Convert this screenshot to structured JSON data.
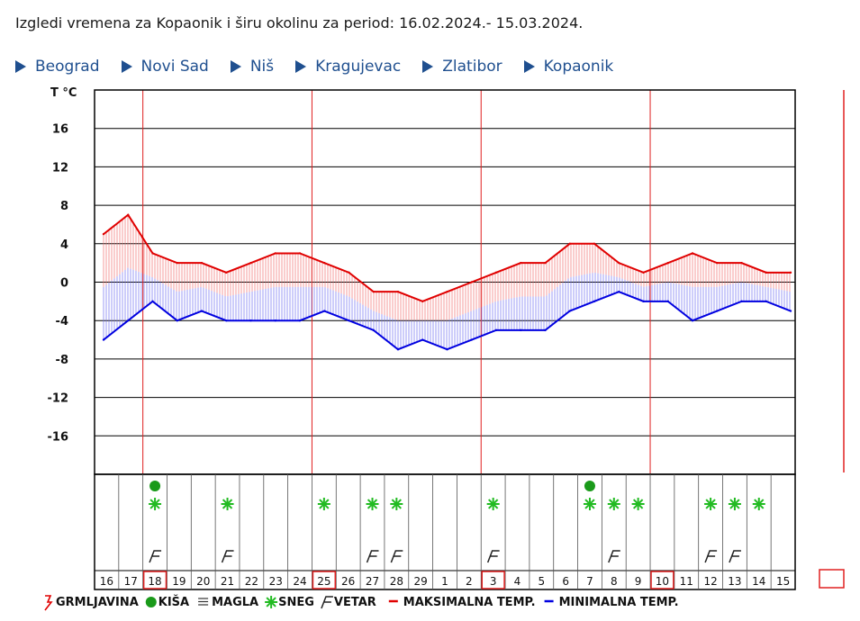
{
  "page": {
    "title": "Izgledi vremena za Kopaonik i širu okolinu za period: 16.02.2024.- 15.03.2024.",
    "nav": [
      "Beograd",
      "Novi Sad",
      "Niš",
      "Kragujevac",
      "Zlatibor",
      "Kopaonik"
    ]
  },
  "chart_data": {
    "type": "line",
    "title": "",
    "ylabel": "T °C",
    "xlabel": "",
    "ylim": [
      -20,
      20
    ],
    "yticks": [
      16,
      12,
      8,
      4,
      0,
      -4,
      -8,
      -12,
      -16
    ],
    "days": [
      "16",
      "17",
      "18",
      "19",
      "20",
      "21",
      "22",
      "23",
      "24",
      "25",
      "26",
      "27",
      "28",
      "29",
      "1",
      "2",
      "3",
      "4",
      "5",
      "6",
      "7",
      "8",
      "9",
      "10",
      "11",
      "12",
      "13",
      "14",
      "15"
    ],
    "boxed_days": [
      "18",
      "25",
      "3",
      "10"
    ],
    "series": [
      {
        "name": "MAKSIMALNA TEMP.",
        "color": "#e00000",
        "values": [
          5,
          7,
          3,
          2,
          2,
          1,
          2,
          3,
          3,
          2,
          1,
          -1,
          -1,
          -2,
          -1,
          0,
          1,
          2,
          2,
          4,
          4,
          2,
          1,
          2,
          3,
          2,
          2,
          1,
          1
        ]
      },
      {
        "name": "MINIMALNA TEMP.",
        "color": "#0000e0",
        "values": [
          -6,
          -4,
          -2,
          -4,
          -3,
          -4,
          -4,
          -4,
          -4,
          -3,
          -4,
          -5,
          -7,
          -6,
          -7,
          -6,
          -5,
          -5,
          -5,
          -3,
          -2,
          -1,
          -2,
          -2,
          -4,
          -3,
          -2,
          -2,
          -3
        ]
      }
    ],
    "weather_events": {
      "kisa": [
        "18",
        "7"
      ],
      "sneg": [
        "18",
        "21",
        "25",
        "27",
        "28",
        "3",
        "7",
        "8",
        "9",
        "12",
        "13",
        "14"
      ],
      "vetar": [
        "18",
        "21",
        "27",
        "28",
        "3",
        "8",
        "12",
        "13"
      ]
    },
    "legend": {
      "position": "bottom",
      "items": [
        {
          "key": "grmljavina",
          "label": "GRMLJAVINA",
          "icon": "lightning-icon",
          "color": "#e00000"
        },
        {
          "key": "kisa",
          "label": "KIŠA",
          "icon": "rain-dot-icon",
          "color": "#1a9a1a"
        },
        {
          "key": "magla",
          "label": "MAGLA",
          "icon": "fog-icon",
          "color": "#333333"
        },
        {
          "key": "sneg",
          "label": "SNEG",
          "icon": "snow-icon",
          "color": "#22bb22"
        },
        {
          "key": "vetar",
          "label": "VETAR",
          "icon": "wind-icon",
          "color": "#333333"
        },
        {
          "key": "max",
          "label": "MAKSIMALNA TEMP.",
          "icon": "red-line-icon",
          "color": "#e00000"
        },
        {
          "key": "min",
          "label": "MINIMALNA TEMP.",
          "icon": "blue-line-icon",
          "color": "#0000e0"
        }
      ]
    },
    "grid": true
  }
}
